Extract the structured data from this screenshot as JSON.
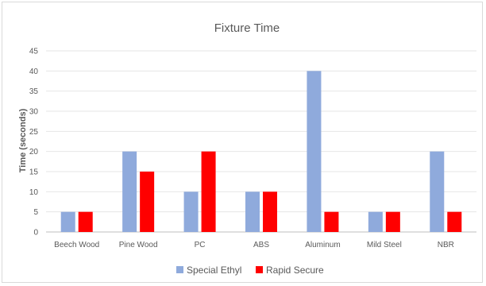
{
  "chart_data": {
    "type": "bar",
    "title": "Fixture Time",
    "xlabel": "",
    "ylabel": "Time (seconds)",
    "ylim": [
      0,
      45
    ],
    "yticks": [
      0,
      5,
      10,
      15,
      20,
      25,
      30,
      35,
      40,
      45
    ],
    "grid": true,
    "legend_position": "bottom",
    "categories": [
      "Beech Wood",
      "Pine Wood",
      "PC",
      "ABS",
      "Aluminum",
      "Mild Steel",
      "NBR"
    ],
    "series": [
      {
        "name": "Special Ethyl",
        "color": "#8faadc",
        "values": [
          5,
          20,
          10,
          10,
          40,
          5,
          20
        ]
      },
      {
        "name": "Rapid Secure",
        "color": "#ff0000",
        "values": [
          5,
          15,
          20,
          10,
          5,
          5,
          5
        ]
      }
    ]
  }
}
